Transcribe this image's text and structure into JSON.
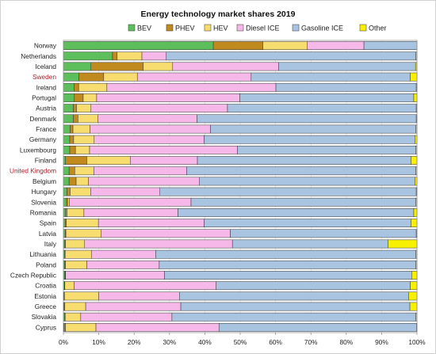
{
  "chart_data": {
    "type": "bar",
    "orientation": "horizontal",
    "stacked": true,
    "title": "Energy technology market shares 2019",
    "xlabel": "",
    "ylabel": "",
    "xlim": [
      0,
      100
    ],
    "x_ticks": [
      "0%",
      "10%",
      "20%",
      "30%",
      "40%",
      "50%",
      "60%",
      "70%",
      "80%",
      "90%",
      "100%"
    ],
    "legend_position": "top",
    "grid": true,
    "highlighted_categories": [
      "Sweden",
      "United Kingdom"
    ],
    "categories": [
      "Norway",
      "Netherlands",
      "Iceland",
      "Sweden",
      "Ireland",
      "Portugal",
      "Austria",
      "Denmark",
      "France",
      "Germany",
      "Luxembourg",
      "Finland",
      "United Kingdom",
      "Belgium",
      "Hungary",
      "Slovenia",
      "Romania",
      "Spain",
      "Latvia",
      "Italy",
      "Lithuania",
      "Poland",
      "Czech Republic",
      "Croatia",
      "Estonia",
      "Greece",
      "Slovakia",
      "Cyprus"
    ],
    "series": [
      {
        "name": "BEV",
        "color": "#5cbf5c",
        "values": [
          42.4,
          13.9,
          7.8,
          4.4,
          3.0,
          3.1,
          2.8,
          2.8,
          1.9,
          1.8,
          1.8,
          0.6,
          1.6,
          1.6,
          1.0,
          0.9,
          0.6,
          0.5,
          0.5,
          0.4,
          0.3,
          0.3,
          0.4,
          0.3,
          0.2,
          0.2,
          0.3,
          0.2
        ]
      },
      {
        "name": "PHEV",
        "color": "#c08a1f",
        "values": [
          14.0,
          1.3,
          14.8,
          7.0,
          1.3,
          2.5,
          0.9,
          1.3,
          0.8,
          1.1,
          1.6,
          6.0,
          1.6,
          2.0,
          0.9,
          0.3,
          0.4,
          0.3,
          0.2,
          0.2,
          0.2,
          0.3,
          0.1,
          0.1,
          0.1,
          0.2,
          0.2,
          0.4
        ]
      },
      {
        "name": "HEV",
        "color": "#f7dc6f",
        "values": [
          12.6,
          7.0,
          8.3,
          9.5,
          8.0,
          3.8,
          4.1,
          5.7,
          4.8,
          5.8,
          4.0,
          12.3,
          5.4,
          3.5,
          5.8,
          0.5,
          4.8,
          9.1,
          9.9,
          5.4,
          7.4,
          6.0,
          0.1,
          2.6,
          9.7,
          5.9,
          4.4,
          8.6
        ]
      },
      {
        "name": "Diesel ICE",
        "color": "#f5b8e8",
        "values": [
          16.0,
          6.9,
          30.0,
          32.2,
          47.8,
          40.5,
          38.6,
          28.0,
          34.1,
          31.1,
          41.8,
          19.0,
          26.3,
          31.3,
          19.6,
          34.4,
          26.6,
          29.9,
          36.6,
          41.8,
          18.2,
          20.5,
          28.0,
          40.2,
          22.8,
          26.9,
          25.8,
          34.8
        ]
      },
      {
        "name": "Gasoline ICE",
        "color": "#a8c4e0",
        "values": [
          15.0,
          70.6,
          38.7,
          45.0,
          39.7,
          49.2,
          53.4,
          62.0,
          58.1,
          59.7,
          50.5,
          60.4,
          64.8,
          61.1,
          72.5,
          63.6,
          66.7,
          58.5,
          52.6,
          44.0,
          73.6,
          72.6,
          69.9,
          54.9,
          64.9,
          64.8,
          69.0,
          55.9
        ]
      },
      {
        "name": "Other",
        "color": "#f7f000",
        "values": [
          0.0,
          0.3,
          0.4,
          1.9,
          0.2,
          0.9,
          0.2,
          0.2,
          0.3,
          0.5,
          0.3,
          1.7,
          0.3,
          0.5,
          0.2,
          0.3,
          0.9,
          1.7,
          0.2,
          8.2,
          0.3,
          0.3,
          1.5,
          1.9,
          2.3,
          2.0,
          0.3,
          0.1
        ]
      }
    ]
  }
}
